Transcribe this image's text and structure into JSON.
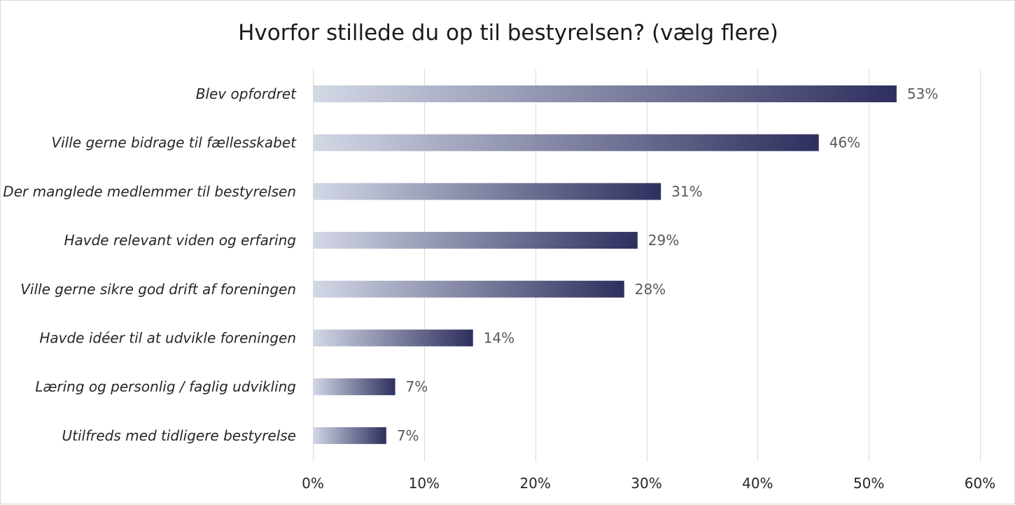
{
  "chart_data": {
    "type": "bar",
    "orientation": "horizontal",
    "title": "Hvorfor stillede du op til bestyrelsen?  (vælg flere)",
    "categories": [
      "Blev opfordret",
      "Ville gerne bidrage til fællesskabet",
      "Der manglede medlemmer til bestyrelsen",
      "Havde relevant viden og erfaring",
      "Ville gerne sikre god drift af foreningen",
      "Havde idéer til at udvikle foreningen",
      "Læring og personlig / faglig udvikling",
      "Utilfreds med tidligere bestyrelse"
    ],
    "values": [
      52.5,
      45.5,
      31.3,
      29.2,
      28.0,
      14.4,
      7.4,
      6.6
    ],
    "value_labels": [
      "53%",
      "46%",
      "31%",
      "29%",
      "28%",
      "14%",
      "7%",
      "7%"
    ],
    "xlim": [
      0,
      60
    ],
    "xticks": [
      0,
      10,
      20,
      30,
      40,
      50,
      60
    ],
    "xtick_labels": [
      "0%",
      "10%",
      "20%",
      "30%",
      "40%",
      "50%",
      "60%"
    ],
    "xlabel": "",
    "ylabel": "",
    "grid": true,
    "legend": "none",
    "colors": {
      "bar_gradient_start": "#d3d8e6",
      "bar_gradient_end": "#2e2f5e",
      "gridline": "#d9d9d9",
      "value_label": "#595959"
    }
  }
}
